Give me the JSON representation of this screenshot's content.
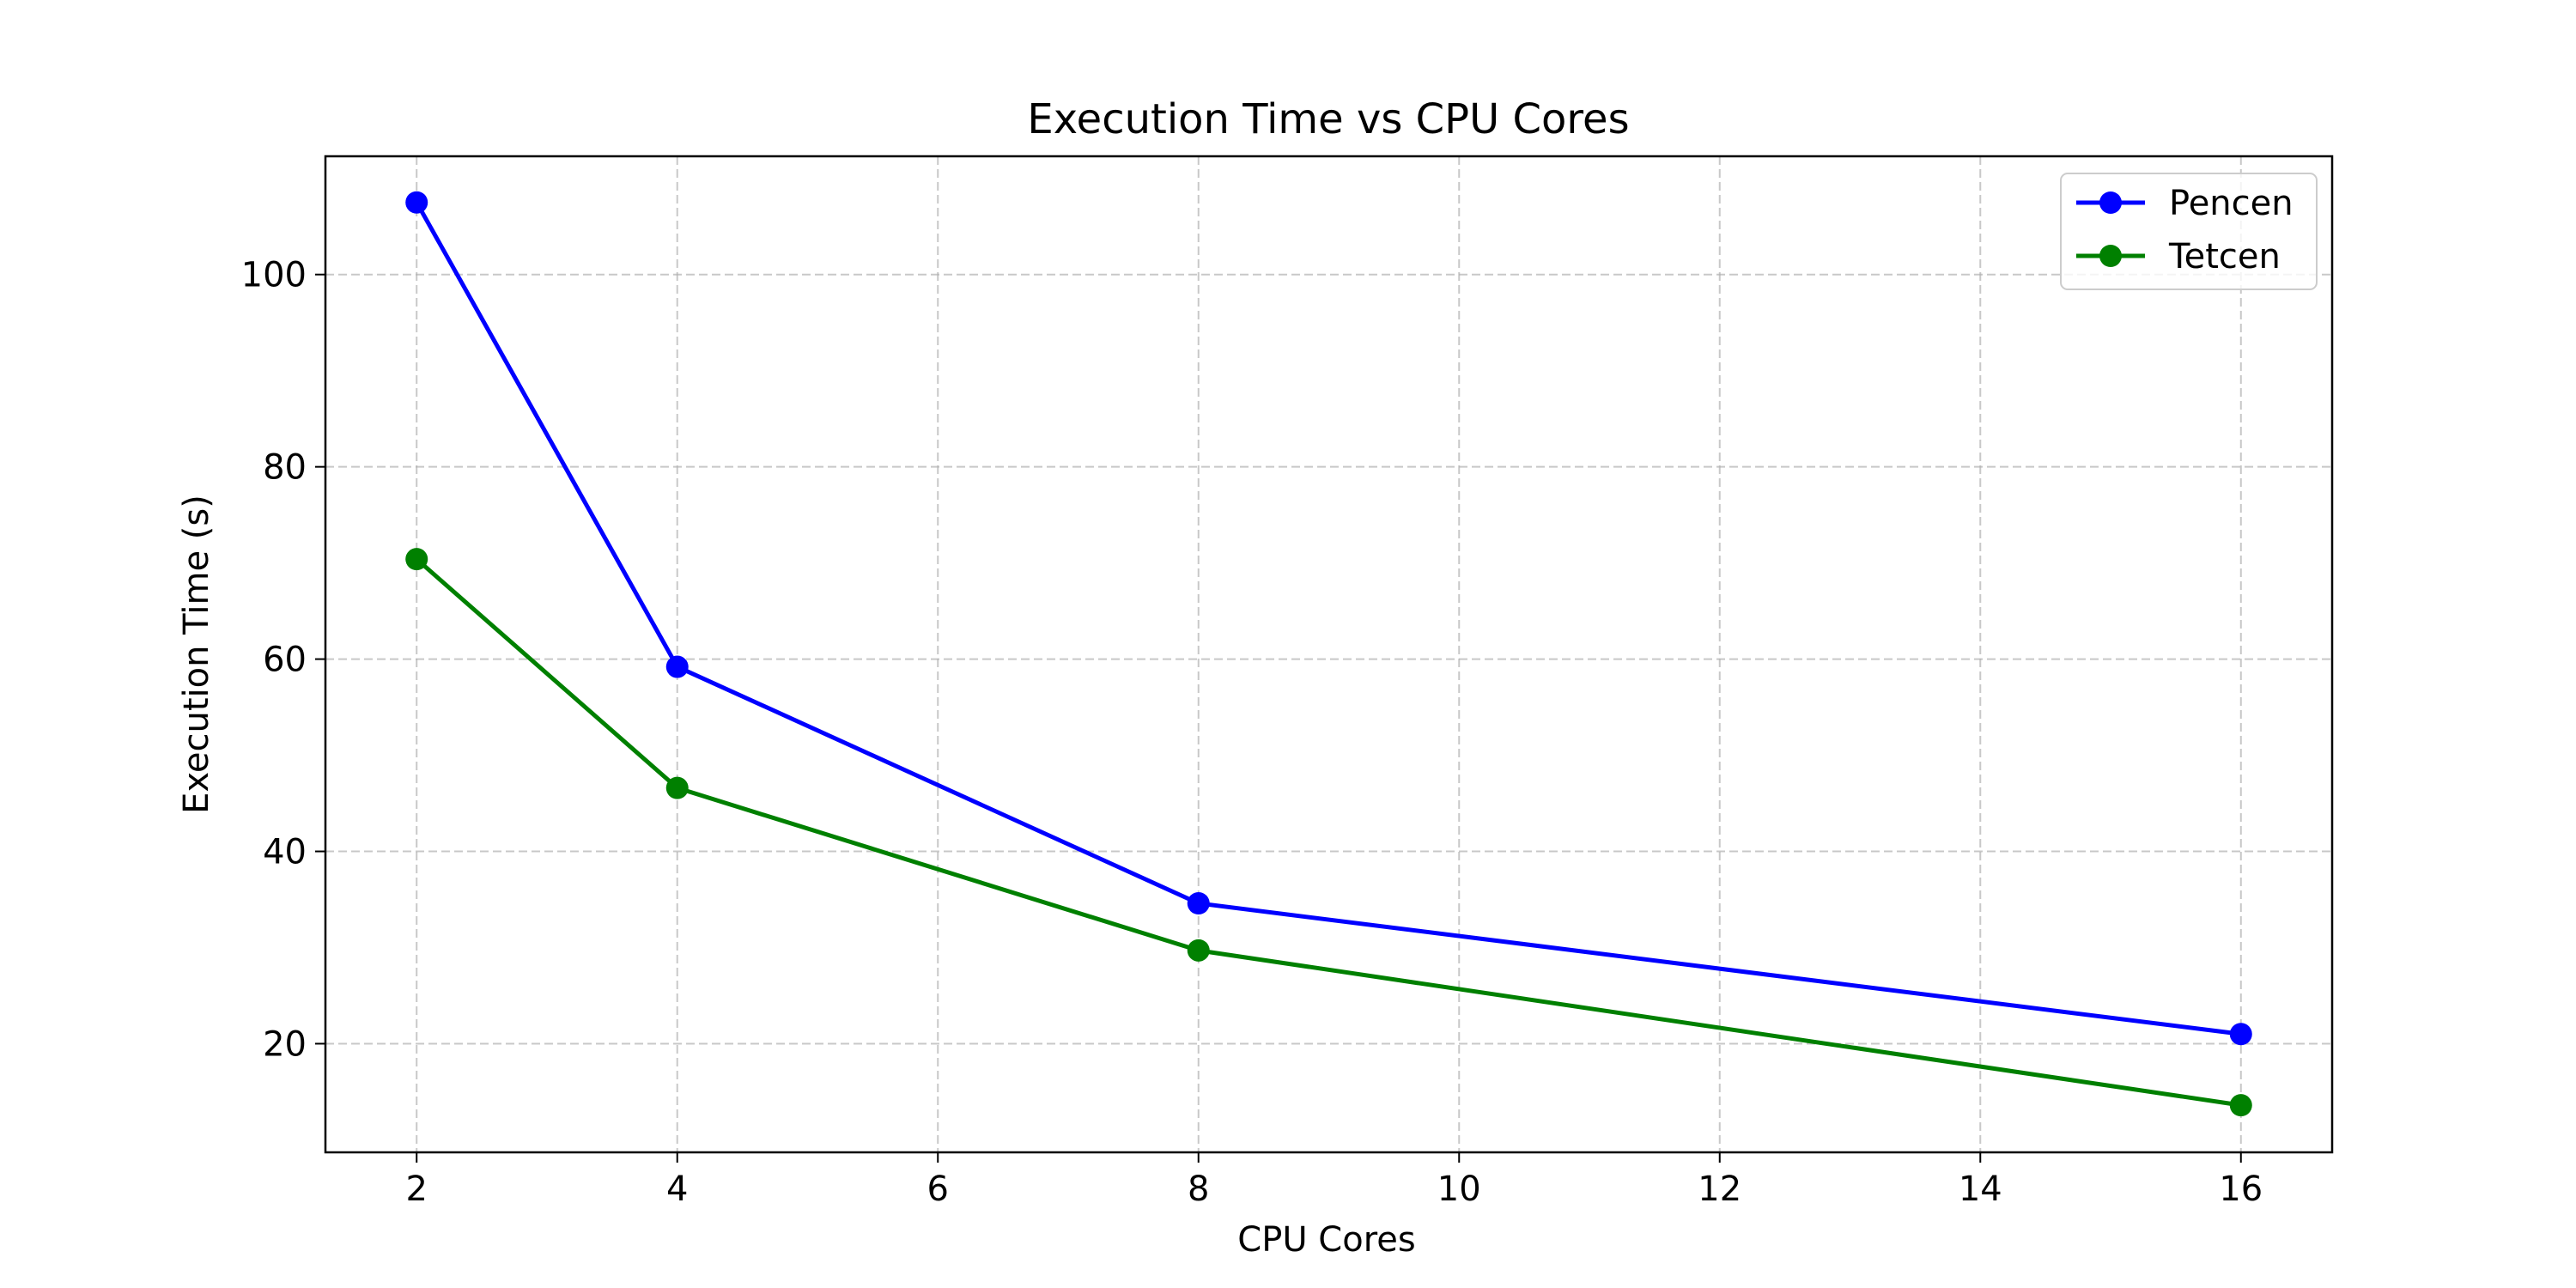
{
  "chart_data": {
    "type": "line",
    "title": "Execution Time vs CPU Cores",
    "xlabel": "CPU Cores",
    "ylabel": "Execution Time (s)",
    "x": [
      2,
      4,
      8,
      16
    ],
    "xlim": [
      1.3,
      16.7
    ],
    "ylim": [
      8.7,
      112.3
    ],
    "xticks": [
      2,
      4,
      6,
      8,
      10,
      12,
      14,
      16
    ],
    "yticks": [
      20,
      40,
      60,
      80,
      100
    ],
    "grid": true,
    "legend_position": "top-right",
    "series": [
      {
        "name": "Pencen",
        "color": "#0000ff",
        "marker": "circle",
        "values": [
          107.5,
          59.2,
          34.6,
          21.0
        ]
      },
      {
        "name": "Tetcen",
        "color": "#008000",
        "marker": "circle",
        "values": [
          70.4,
          46.6,
          29.7,
          13.6
        ]
      }
    ]
  }
}
